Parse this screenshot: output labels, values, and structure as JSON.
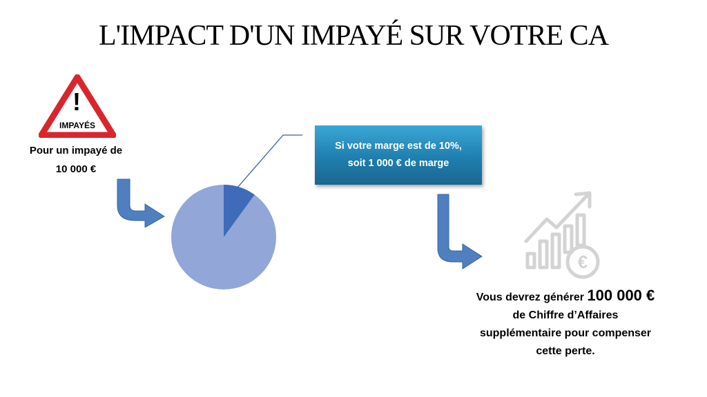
{
  "title": "L'IMPACT D'UN IMPAYÉ SUR VOTRE CA",
  "warning_sign": {
    "label": "IMPAYÉS",
    "symbol": "!"
  },
  "left_text": {
    "line1": "Pour un impayé de",
    "line2": "10 000 €"
  },
  "callout": {
    "line1": "Si votre marge est de 10%,",
    "line2": "soit 1 000 € de marge"
  },
  "pie": {
    "margin_fraction": 0.1
  },
  "result": {
    "prefix": "Vous devrez générer ",
    "amount": "100 000 €",
    "line2": "de Chiffre d’Affaires",
    "line3": "supplémentaire pour compenser",
    "line4": "cette perte."
  },
  "colors": {
    "arrow": "#4f7fbf",
    "pie_main": "#93a6d8",
    "pie_slice": "#3f6bb8",
    "callout": "#1f7fae",
    "sign_red": "#d9262c",
    "icon_gray": "#d3d3d3"
  },
  "icons": [
    "warning-sign-icon",
    "growth-chart-euro-icon"
  ]
}
